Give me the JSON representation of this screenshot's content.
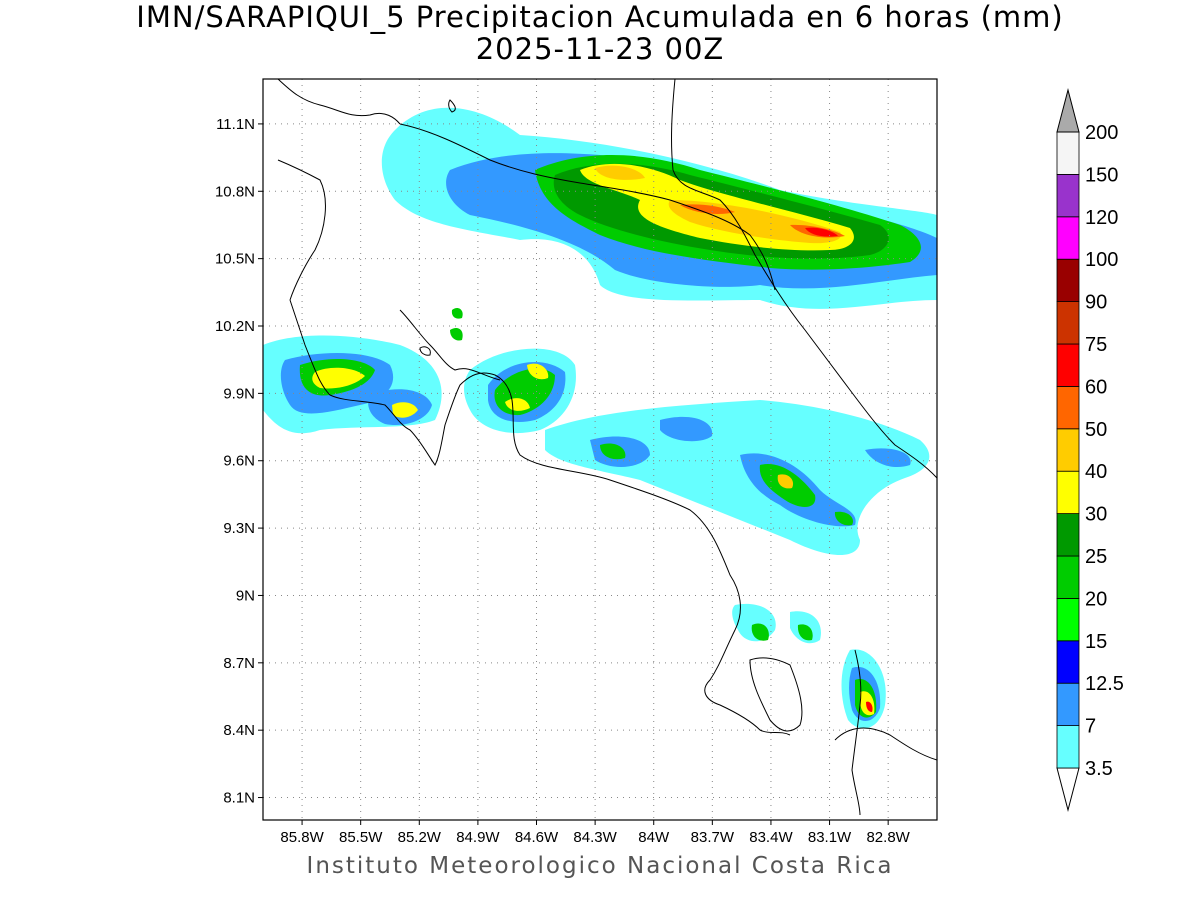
{
  "title_line1": "IMN/SARAPIQUI_5 Precipitacion Acumulada en 6 horas (mm)",
  "title_line2": "2025-11-23 00Z",
  "credit": "Instituto Meteorologico Nacional Costa Rica",
  "map": {
    "lat_ticks": [
      "11.1N",
      "10.8N",
      "10.5N",
      "10.2N",
      "9.9N",
      "9.6N",
      "9.3N",
      "9N",
      "8.7N",
      "8.4N",
      "8.1N"
    ],
    "lon_ticks": [
      "85.8W",
      "85.5W",
      "85.2W",
      "84.9W",
      "84.6W",
      "84.3W",
      "84W",
      "83.7W",
      "83.4W",
      "83.1W",
      "82.8W"
    ],
    "lat_values": [
      11.1,
      10.8,
      10.5,
      10.2,
      9.9,
      9.6,
      9.3,
      9.0,
      8.7,
      8.4,
      8.1
    ],
    "lon_values": [
      -85.8,
      -85.5,
      -85.2,
      -84.9,
      -84.6,
      -84.3,
      -84.0,
      -83.7,
      -83.4,
      -83.1,
      -82.8
    ],
    "lat_range": [
      8.0,
      11.3
    ],
    "lon_range": [
      -86.0,
      -82.55
    ],
    "grid": "dotted",
    "units": "mm"
  },
  "colorbar": {
    "levels": [
      "3.5",
      "7",
      "12.5",
      "15",
      "20",
      "25",
      "30",
      "40",
      "50",
      "60",
      "75",
      "90",
      "100",
      "120",
      "150",
      "200"
    ],
    "colors": [
      "#66ffff",
      "#3399ff",
      "#0000ff",
      "#00ff00",
      "#00cc00",
      "#009900",
      "#ffff00",
      "#ffcc00",
      "#ff6600",
      "#ff0000",
      "#cc3300",
      "#990000",
      "#ff00ff",
      "#9933cc",
      "#f5f5f5",
      "#aaaaaa"
    ]
  },
  "precip_cells": [
    {
      "lon": -83.55,
      "lat": 10.72,
      "peak": 60
    },
    {
      "lon": -83.15,
      "lat": 10.66,
      "peak": 60
    },
    {
      "lon": -84.2,
      "lat": 10.86,
      "peak": 50
    },
    {
      "lon": -83.85,
      "lat": 10.78,
      "peak": 40
    },
    {
      "lon": -85.65,
      "lat": 9.99,
      "peak": 40
    },
    {
      "lon": -85.25,
      "lat": 9.82,
      "peak": 30
    },
    {
      "lon": -84.55,
      "lat": 10.0,
      "peak": 40
    },
    {
      "lon": -84.65,
      "lat": 9.86,
      "peak": 40
    },
    {
      "lon": -83.35,
      "lat": 9.5,
      "peak": 50
    },
    {
      "lon": -82.85,
      "lat": 8.5,
      "peak": 75
    },
    {
      "lon": -84.15,
      "lat": 9.63,
      "peak": 25
    }
  ]
}
